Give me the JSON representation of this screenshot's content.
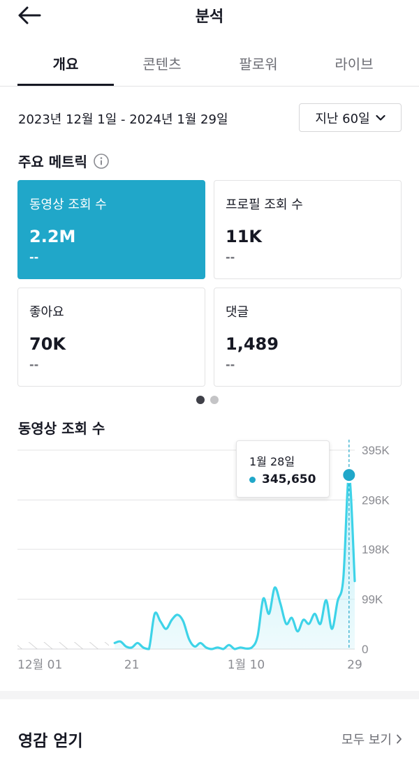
{
  "header": {
    "title": "분석",
    "back_icon": "arrow-left-icon"
  },
  "tabs": [
    {
      "label": "개요",
      "active": true
    },
    {
      "label": "콘텐츠",
      "active": false
    },
    {
      "label": "팔로워",
      "active": false
    },
    {
      "label": "라이브",
      "active": false
    }
  ],
  "date_range": "2023년 12월 1일 - 2024년 1월 29일",
  "period_selector": {
    "label": "지난 60일",
    "icon": "chevron-down-icon"
  },
  "metrics": {
    "title": "주요 메트릭",
    "info_icon": "info-icon",
    "cards": [
      {
        "label": "동영상 조회 수",
        "value": "2.2M",
        "delta": "--",
        "selected": true
      },
      {
        "label": "프로필 조회 수",
        "value": "11K",
        "delta": "--",
        "selected": false
      },
      {
        "label": "좋아요",
        "value": "70K",
        "delta": "--",
        "selected": false
      },
      {
        "label": "댓글",
        "value": "1,489",
        "delta": "--",
        "selected": false
      }
    ],
    "pager": {
      "pages": 2,
      "current": 1
    }
  },
  "chart_data": {
    "type": "area",
    "title": "동영상 조회 수",
    "y_tick_labels": [
      "0",
      "99K",
      "198K",
      "296K",
      "395K"
    ],
    "y_ticks": [
      0,
      99000,
      198000,
      296000,
      395000
    ],
    "ylim": [
      0,
      395000
    ],
    "x_tick_labels": [
      "12월 01",
      "21",
      "1월 10",
      "29"
    ],
    "x_tick_days": [
      1,
      21,
      41,
      60
    ],
    "xlim": [
      1,
      60
    ],
    "grid": true,
    "y_axis_position": "right",
    "no_data_range_days": [
      1,
      17
    ],
    "line_color": "#3ed3e8",
    "fill_color": "#bdeef7",
    "x": [
      18,
      19,
      20,
      21,
      22,
      23,
      24,
      25,
      26,
      27,
      28,
      29,
      30,
      31,
      32,
      33,
      34,
      35,
      36,
      37,
      38,
      39,
      40,
      41,
      42,
      43,
      44,
      45,
      46,
      47,
      48,
      49,
      50,
      51,
      52,
      53,
      54,
      55,
      56,
      57,
      58,
      59,
      60
    ],
    "values": [
      12000,
      15000,
      5000,
      3000,
      12000,
      3000,
      0,
      70000,
      55000,
      40000,
      58000,
      68000,
      55000,
      20000,
      5000,
      12000,
      3000,
      0,
      3000,
      0,
      8000,
      0,
      3000,
      1000,
      3000,
      25000,
      100000,
      70000,
      122000,
      90000,
      50000,
      62000,
      35000,
      58000,
      50000,
      70000,
      50000,
      97000,
      40000,
      95000,
      140000,
      345650,
      135000
    ],
    "highlight": {
      "label": "1월 28일",
      "x": 59,
      "value": 345650,
      "value_label": "345,650"
    }
  },
  "inspiration": {
    "title": "영감 얻기",
    "see_all_label": "모두 보기",
    "see_all_icon": "chevron-right-icon"
  }
}
